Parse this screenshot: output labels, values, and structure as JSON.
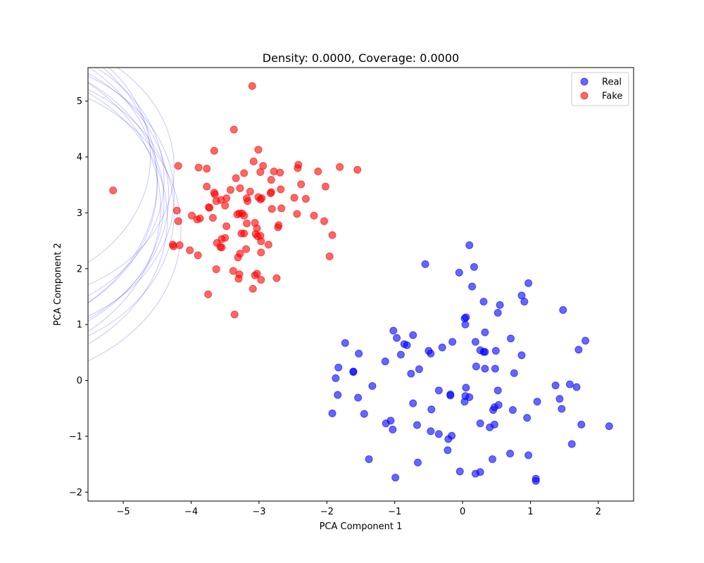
{
  "chart_data": {
    "type": "scatter",
    "title": "Density: 0.0000, Coverage: 0.0000",
    "xlabel": "PCA Component 1",
    "ylabel": "PCA Component 2",
    "xlim": [
      -5.52,
      2.52
    ],
    "ylim": [
      -2.16,
      5.6
    ],
    "x_ticks": [
      -5,
      -4,
      -3,
      -2,
      -1,
      0,
      1,
      2
    ],
    "x_tick_labels": [
      "−5",
      "−4",
      "−3",
      "−2",
      "−1",
      "0",
      "1",
      "2"
    ],
    "y_ticks": [
      -2,
      -1,
      0,
      1,
      2,
      3,
      4,
      5
    ],
    "y_tick_labels": [
      "−2",
      "−1",
      "0",
      "1",
      "2",
      "3",
      "4",
      "5"
    ],
    "grid": false,
    "legend_position": "top-right",
    "series": [
      {
        "name": "Real",
        "color": "#0000ff",
        "points": [
          [
            0.1,
            2.42
          ],
          [
            -0.55,
            2.08
          ],
          [
            -0.05,
            1.93
          ],
          [
            0.17,
            2.03
          ],
          [
            0.14,
            1.68
          ],
          [
            0.97,
            1.74
          ],
          [
            0.87,
            1.52
          ],
          [
            0.91,
            1.41
          ],
          [
            0.31,
            1.41
          ],
          [
            0.55,
            1.35
          ],
          [
            0.52,
            1.21
          ],
          [
            1.48,
            1.26
          ],
          [
            0.03,
            1.11
          ],
          [
            0.05,
            1.13
          ],
          [
            0.04,
            1.0
          ],
          [
            -1.73,
            0.67
          ],
          [
            -1.02,
            0.89
          ],
          [
            -0.73,
            0.81
          ],
          [
            -0.97,
            0.76
          ],
          [
            -0.86,
            0.65
          ],
          [
            -0.82,
            0.63
          ],
          [
            -0.15,
            0.69
          ],
          [
            -0.3,
            0.59
          ],
          [
            -0.5,
            0.53
          ],
          [
            -0.47,
            0.48
          ],
          [
            0.19,
            0.69
          ],
          [
            0.26,
            0.54
          ],
          [
            0.33,
            0.86
          ],
          [
            0.33,
            0.51
          ],
          [
            0.31,
            0.51
          ],
          [
            0.49,
            0.53
          ],
          [
            0.71,
            0.75
          ],
          [
            0.87,
            0.45
          ],
          [
            1.71,
            0.55
          ],
          [
            1.81,
            0.71
          ],
          [
            -1.53,
            0.48
          ],
          [
            -0.91,
            0.46
          ],
          [
            -1.14,
            0.34
          ],
          [
            -1.83,
            0.23
          ],
          [
            -1.61,
            0.16
          ],
          [
            -1.61,
            0.15
          ],
          [
            -0.64,
            0.2
          ],
          [
            -0.76,
            0.12
          ],
          [
            0.2,
            0.25
          ],
          [
            0.33,
            0.21
          ],
          [
            0.48,
            0.21
          ],
          [
            0.76,
            0.13
          ],
          [
            -1.87,
            0.04
          ],
          [
            -1.33,
            -0.1
          ],
          [
            -1.84,
            -0.26
          ],
          [
            -1.54,
            -0.31
          ],
          [
            -0.35,
            -0.18
          ],
          [
            -0.18,
            -0.25
          ],
          [
            -0.18,
            -0.27
          ],
          [
            0.05,
            -0.13
          ],
          [
            0.04,
            -0.28
          ],
          [
            0.1,
            -0.3
          ],
          [
            0.03,
            -0.38
          ],
          [
            0.52,
            -0.18
          ],
          [
            1.37,
            -0.09
          ],
          [
            1.58,
            -0.07
          ],
          [
            1.68,
            -0.12
          ],
          [
            1.43,
            -0.33
          ],
          [
            1.1,
            -0.38
          ],
          [
            -0.73,
            -0.41
          ],
          [
            -0.46,
            -0.52
          ],
          [
            0.47,
            -0.48
          ],
          [
            0.53,
            -0.44
          ],
          [
            0.45,
            -0.53
          ],
          [
            0.74,
            -0.53
          ],
          [
            1.46,
            -0.51
          ],
          [
            -1.92,
            -0.59
          ],
          [
            -1.45,
            -0.6
          ],
          [
            -1.06,
            -0.72
          ],
          [
            -1.13,
            -0.77
          ],
          [
            -1.03,
            -0.88
          ],
          [
            -0.67,
            -0.8
          ],
          [
            -0.47,
            -0.91
          ],
          [
            -0.35,
            -0.96
          ],
          [
            -0.16,
            -0.99
          ],
          [
            -0.21,
            -1.05
          ],
          [
            0.26,
            -0.77
          ],
          [
            0.4,
            -0.84
          ],
          [
            0.47,
            -0.79
          ],
          [
            0.95,
            -0.67
          ],
          [
            1.75,
            -0.79
          ],
          [
            2.16,
            -0.82
          ],
          [
            1.61,
            -1.14
          ],
          [
            -0.22,
            -1.25
          ],
          [
            -1.38,
            -1.41
          ],
          [
            -0.66,
            -1.47
          ],
          [
            0.7,
            -1.31
          ],
          [
            0.97,
            -1.34
          ],
          [
            0.44,
            -1.41
          ],
          [
            -0.04,
            -1.63
          ],
          [
            0.26,
            -1.64
          ],
          [
            0.19,
            -1.67
          ],
          [
            -0.99,
            -1.74
          ],
          [
            1.08,
            -1.76
          ],
          [
            1.08,
            -1.8
          ]
        ]
      },
      {
        "name": "Fake",
        "color": "#ff0000",
        "points": [
          [
            -3.1,
            5.27
          ],
          [
            -3.37,
            4.49
          ],
          [
            -3.66,
            4.11
          ],
          [
            -3.01,
            4.13
          ],
          [
            -3.08,
            3.92
          ],
          [
            -4.19,
            3.84
          ],
          [
            -3.89,
            3.81
          ],
          [
            -3.77,
            3.79
          ],
          [
            -3.22,
            3.71
          ],
          [
            -2.94,
            3.84
          ],
          [
            -2.98,
            3.73
          ],
          [
            -2.78,
            3.74
          ],
          [
            -2.69,
            3.72
          ],
          [
            -2.42,
            3.86
          ],
          [
            -2.43,
            3.8
          ],
          [
            -2.13,
            3.74
          ],
          [
            -1.81,
            3.82
          ],
          [
            -1.55,
            3.77
          ],
          [
            -3.34,
            3.62
          ],
          [
            -2.82,
            3.59
          ],
          [
            -2.38,
            3.51
          ],
          [
            -5.15,
            3.4
          ],
          [
            -3.77,
            3.47
          ],
          [
            -3.66,
            3.36
          ],
          [
            -3.65,
            3.33
          ],
          [
            -3.42,
            3.41
          ],
          [
            -3.28,
            3.44
          ],
          [
            -3.13,
            3.38
          ],
          [
            -3.18,
            3.26
          ],
          [
            -3.17,
            3.21
          ],
          [
            -3.01,
            3.28
          ],
          [
            -2.98,
            3.24
          ],
          [
            -2.96,
            3.26
          ],
          [
            -2.82,
            3.37
          ],
          [
            -2.83,
            3.35
          ],
          [
            -2.68,
            3.42
          ],
          [
            -2.02,
            3.47
          ],
          [
            -2.31,
            3.25
          ],
          [
            -2.48,
            3.27
          ],
          [
            -3.63,
            3.21
          ],
          [
            -3.56,
            3.23
          ],
          [
            -3.5,
            3.13
          ],
          [
            -3.48,
            3.26
          ],
          [
            -3.73,
            3.09
          ],
          [
            -3.74,
            3.1
          ],
          [
            -2.81,
            3.07
          ],
          [
            -2.67,
            3.08
          ],
          [
            -4.21,
            3.04
          ],
          [
            -3.99,
            2.95
          ],
          [
            -3.87,
            2.9
          ],
          [
            -3.91,
            2.88
          ],
          [
            -3.68,
            2.91
          ],
          [
            -3.29,
            2.99
          ],
          [
            -3.25,
            2.99
          ],
          [
            -3.22,
            2.95
          ],
          [
            -3.32,
            2.97
          ],
          [
            -2.44,
            2.98
          ],
          [
            -2.19,
            2.95
          ],
          [
            -4.19,
            2.85
          ],
          [
            -3.48,
            2.76
          ],
          [
            -3.18,
            2.81
          ],
          [
            -3.06,
            2.82
          ],
          [
            -3.03,
            2.72
          ],
          [
            -2.71,
            2.78
          ],
          [
            -2.72,
            2.74
          ],
          [
            -2.04,
            2.85
          ],
          [
            -1.92,
            2.6
          ],
          [
            -3.26,
            2.63
          ],
          [
            -3.22,
            2.63
          ],
          [
            -3.05,
            2.62
          ],
          [
            -3.02,
            2.58
          ],
          [
            -2.98,
            2.59
          ],
          [
            -2.97,
            2.49
          ],
          [
            -3.5,
            2.55
          ],
          [
            -3.55,
            2.53
          ],
          [
            -3.62,
            2.46
          ],
          [
            -3.57,
            2.39
          ],
          [
            -3.55,
            2.38
          ],
          [
            -4.27,
            2.43
          ],
          [
            -4.26,
            2.4
          ],
          [
            -4.17,
            2.42
          ],
          [
            -4.02,
            2.33
          ],
          [
            -3.9,
            2.24
          ],
          [
            -3.19,
            2.35
          ],
          [
            -2.86,
            2.43
          ],
          [
            -3.28,
            2.27
          ],
          [
            -3.31,
            2.2
          ],
          [
            -2.97,
            2.29
          ],
          [
            -1.96,
            2.22
          ],
          [
            -3.63,
            1.99
          ],
          [
            -3.38,
            1.96
          ],
          [
            -3.29,
            1.9
          ],
          [
            -3.3,
            1.82
          ],
          [
            -3.06,
            1.88
          ],
          [
            -3.03,
            1.91
          ],
          [
            -2.97,
            1.8
          ],
          [
            -2.74,
            1.83
          ],
          [
            -3.09,
            1.64
          ],
          [
            -3.75,
            1.54
          ],
          [
            -3.36,
            1.18
          ]
        ]
      }
    ],
    "annotations": "faint blue circle arcs clipped at top-left corner of the axes"
  }
}
